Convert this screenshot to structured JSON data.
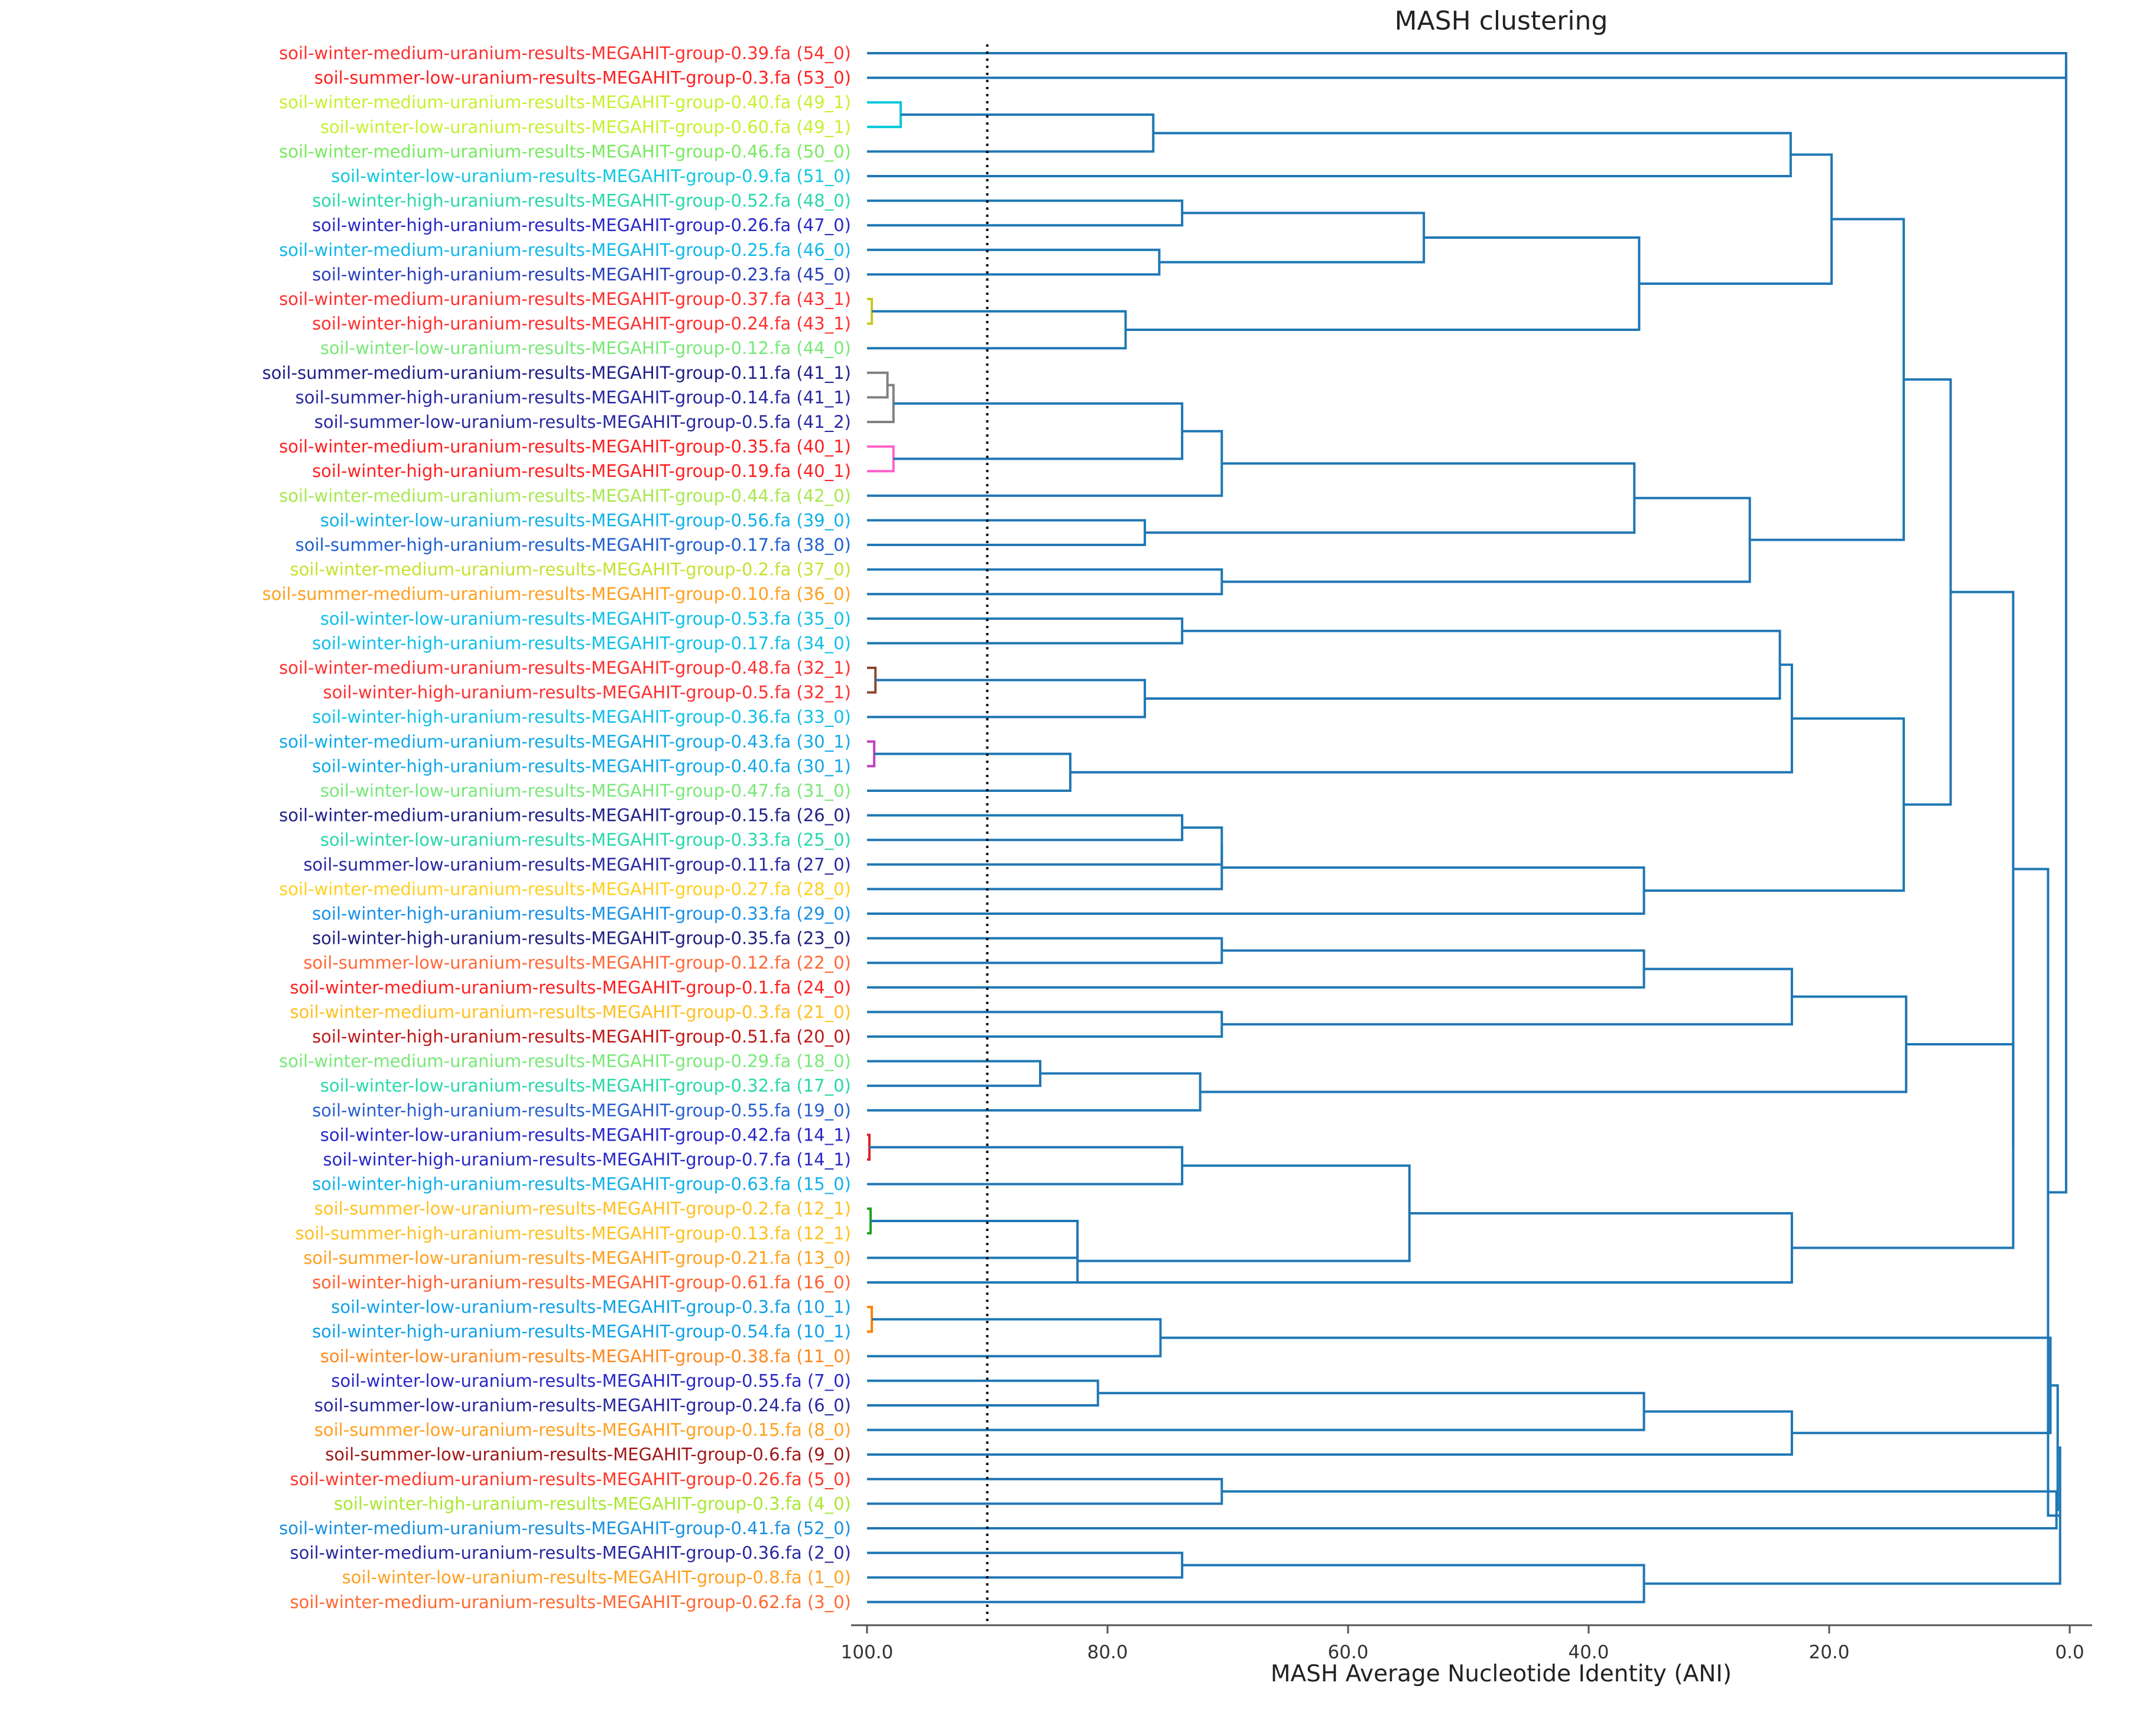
{
  "chart_data": {
    "type": "dendrogram",
    "title": "MASH clustering",
    "xlabel": "MASH Average Nucleotide Identity (ANI)",
    "xlim": [
      100,
      0
    ],
    "xticks": [
      {
        "value": 100,
        "label": "100.0"
      },
      {
        "value": 80,
        "label": "80.0"
      },
      {
        "value": 60,
        "label": "60.0"
      },
      {
        "value": 40,
        "label": "40.0"
      },
      {
        "value": 20,
        "label": "20.0"
      },
      {
        "value": 0,
        "label": "0.0"
      }
    ],
    "threshold_line": 90,
    "line_color": "#1f77b4",
    "leaves": [
      {
        "label": "soil-winter-medium-uranium-results-MEGAHIT-group-0.39.fa (54_0)",
        "color": "#ff3030"
      },
      {
        "label": "soil-summer-low-uranium-results-MEGAHIT-group-0.3.fa (53_0)",
        "color": "#ff2020"
      },
      {
        "label": "soil-winter-medium-uranium-results-MEGAHIT-group-0.40.fa (49_1)",
        "color": "#c8f030"
      },
      {
        "label": "soil-winter-low-uranium-results-MEGAHIT-group-0.60.fa (49_1)",
        "color": "#c8f030"
      },
      {
        "label": "soil-winter-medium-uranium-results-MEGAHIT-group-0.46.fa (50_0)",
        "color": "#78ea60"
      },
      {
        "label": "soil-winter-low-uranium-results-MEGAHIT-group-0.9.fa (51_0)",
        "color": "#10c8e0"
      },
      {
        "label": "soil-winter-high-uranium-results-MEGAHIT-group-0.52.fa (48_0)",
        "color": "#28d8a8"
      },
      {
        "label": "soil-winter-high-uranium-results-MEGAHIT-group-0.26.fa (47_0)",
        "color": "#2828c8"
      },
      {
        "label": "soil-winter-medium-uranium-results-MEGAHIT-group-0.25.fa (46_0)",
        "color": "#10b8e8"
      },
      {
        "label": "soil-winter-high-uranium-results-MEGAHIT-group-0.23.fa (45_0)",
        "color": "#2840b8"
      },
      {
        "label": "soil-winter-medium-uranium-results-MEGAHIT-group-0.37.fa (43_1)",
        "color": "#ff3030"
      },
      {
        "label": "soil-winter-high-uranium-results-MEGAHIT-group-0.24.fa (43_1)",
        "color": "#ff3030"
      },
      {
        "label": "soil-winter-low-uranium-results-MEGAHIT-group-0.12.fa (44_0)",
        "color": "#78e878"
      },
      {
        "label": "soil-summer-medium-uranium-results-MEGAHIT-group-0.11.fa (41_1)",
        "color": "#202088"
      },
      {
        "label": "soil-summer-high-uranium-results-MEGAHIT-group-0.14.fa (41_1)",
        "color": "#2828a0"
      },
      {
        "label": "soil-summer-low-uranium-results-MEGAHIT-group-0.5.fa (41_2)",
        "color": "#2828a0"
      },
      {
        "label": "soil-winter-medium-uranium-results-MEGAHIT-group-0.35.fa (40_1)",
        "color": "#ff2020"
      },
      {
        "label": "soil-winter-high-uranium-results-MEGAHIT-group-0.19.fa (40_1)",
        "color": "#ff2020"
      },
      {
        "label": "soil-winter-medium-uranium-results-MEGAHIT-group-0.44.fa (42_0)",
        "color": "#a8e850"
      },
      {
        "label": "soil-winter-low-uranium-results-MEGAHIT-group-0.56.fa (39_0)",
        "color": "#10b0e8"
      },
      {
        "label": "soil-summer-high-uranium-results-MEGAHIT-group-0.17.fa (38_0)",
        "color": "#2060d0"
      },
      {
        "label": "soil-winter-medium-uranium-results-MEGAHIT-group-0.2.fa (37_0)",
        "color": "#c8e030"
      },
      {
        "label": "soil-summer-medium-uranium-results-MEGAHIT-group-0.10.fa (36_0)",
        "color": "#ffa020"
      },
      {
        "label": "soil-winter-low-uranium-results-MEGAHIT-group-0.53.fa (35_0)",
        "color": "#10c0e8"
      },
      {
        "label": "soil-winter-high-uranium-results-MEGAHIT-group-0.17.fa (34_0)",
        "color": "#10c0e8"
      },
      {
        "label": "soil-winter-medium-uranium-results-MEGAHIT-group-0.48.fa (32_1)",
        "color": "#ff3030"
      },
      {
        "label": "soil-winter-high-uranium-results-MEGAHIT-group-0.5.fa (32_1)",
        "color": "#ff3030"
      },
      {
        "label": "soil-winter-high-uranium-results-MEGAHIT-group-0.36.fa (33_0)",
        "color": "#10c0e8"
      },
      {
        "label": "soil-winter-medium-uranium-results-MEGAHIT-group-0.43.fa (30_1)",
        "color": "#10a8e8"
      },
      {
        "label": "soil-winter-high-uranium-results-MEGAHIT-group-0.40.fa (30_1)",
        "color": "#10a8e8"
      },
      {
        "label": "soil-winter-low-uranium-results-MEGAHIT-group-0.47.fa (31_0)",
        "color": "#78e878"
      },
      {
        "label": "soil-winter-medium-uranium-results-MEGAHIT-group-0.15.fa (26_0)",
        "color": "#202088"
      },
      {
        "label": "soil-winter-low-uranium-results-MEGAHIT-group-0.33.fa (25_0)",
        "color": "#28d8a8"
      },
      {
        "label": "soil-summer-low-uranium-results-MEGAHIT-group-0.11.fa (27_0)",
        "color": "#2828a0"
      },
      {
        "label": "soil-winter-medium-uranium-results-MEGAHIT-group-0.27.fa (28_0)",
        "color": "#ffd020"
      },
      {
        "label": "soil-winter-high-uranium-results-MEGAHIT-group-0.33.fa (29_0)",
        "color": "#1890e8"
      },
      {
        "label": "soil-winter-high-uranium-results-MEGAHIT-group-0.35.fa (23_0)",
        "color": "#202080"
      },
      {
        "label": "soil-summer-low-uranium-results-MEGAHIT-group-0.12.fa (22_0)",
        "color": "#ff6838"
      },
      {
        "label": "soil-winter-medium-uranium-results-MEGAHIT-group-0.1.fa (24_0)",
        "color": "#ff2020"
      },
      {
        "label": "soil-winter-medium-uranium-results-MEGAHIT-group-0.3.fa (21_0)",
        "color": "#ffc020"
      },
      {
        "label": "soil-winter-high-uranium-results-MEGAHIT-group-0.51.fa (20_0)",
        "color": "#c01818"
      },
      {
        "label": "soil-winter-medium-uranium-results-MEGAHIT-group-0.29.fa (18_0)",
        "color": "#78e878"
      },
      {
        "label": "soil-winter-low-uranium-results-MEGAHIT-group-0.32.fa (17_0)",
        "color": "#28d8a8"
      },
      {
        "label": "soil-winter-high-uranium-results-MEGAHIT-group-0.55.fa (19_0)",
        "color": "#2860d0"
      },
      {
        "label": "soil-winter-low-uranium-results-MEGAHIT-group-0.42.fa (14_1)",
        "color": "#2828c8"
      },
      {
        "label": "soil-winter-high-uranium-results-MEGAHIT-group-0.7.fa (14_1)",
        "color": "#2828c8"
      },
      {
        "label": "soil-winter-high-uranium-results-MEGAHIT-group-0.63.fa (15_0)",
        "color": "#10b0e8"
      },
      {
        "label": "soil-summer-low-uranium-results-MEGAHIT-group-0.2.fa (12_1)",
        "color": "#ffc020"
      },
      {
        "label": "soil-summer-high-uranium-results-MEGAHIT-group-0.13.fa (12_1)",
        "color": "#ffc020"
      },
      {
        "label": "soil-summer-low-uranium-results-MEGAHIT-group-0.21.fa (13_0)",
        "color": "#ffa020"
      },
      {
        "label": "soil-winter-high-uranium-results-MEGAHIT-group-0.61.fa (16_0)",
        "color": "#ff6030"
      },
      {
        "label": "soil-winter-low-uranium-results-MEGAHIT-group-0.3.fa (10_1)",
        "color": "#10a0e8"
      },
      {
        "label": "soil-winter-high-uranium-results-MEGAHIT-group-0.54.fa (10_1)",
        "color": "#10a0e8"
      },
      {
        "label": "soil-winter-low-uranium-results-MEGAHIT-group-0.38.fa (11_0)",
        "color": "#ff8820"
      },
      {
        "label": "soil-winter-low-uranium-results-MEGAHIT-group-0.55.fa (7_0)",
        "color": "#2828c8"
      },
      {
        "label": "soil-summer-low-uranium-results-MEGAHIT-group-0.24.fa (6_0)",
        "color": "#2828a0"
      },
      {
        "label": "soil-summer-low-uranium-results-MEGAHIT-group-0.15.fa (8_0)",
        "color": "#ffa020"
      },
      {
        "label": "soil-summer-low-uranium-results-MEGAHIT-group-0.6.fa (9_0)",
        "color": "#a01818"
      },
      {
        "label": "soil-winter-medium-uranium-results-MEGAHIT-group-0.26.fa (5_0)",
        "color": "#ff3828"
      },
      {
        "label": "soil-winter-high-uranium-results-MEGAHIT-group-0.3.fa (4_0)",
        "color": "#a8e830"
      },
      {
        "label": "soil-winter-medium-uranium-results-MEGAHIT-group-0.41.fa (52_0)",
        "color": "#1890e0"
      },
      {
        "label": "soil-winter-medium-uranium-results-MEGAHIT-group-0.36.fa (2_0)",
        "color": "#2828a0"
      },
      {
        "label": "soil-winter-low-uranium-results-MEGAHIT-group-0.8.fa (1_0)",
        "color": "#ffa020"
      },
      {
        "label": "soil-winter-medium-uranium-results-MEGAHIT-group-0.62.fa (3_0)",
        "color": "#ff6830"
      }
    ],
    "merges": [
      {
        "id": "c00",
        "a": 0,
        "b": 1,
        "height": 0.3
      },
      {
        "id": "c01",
        "a": 2,
        "b": 3,
        "height": 97.2,
        "color": "#00c8d8"
      },
      {
        "id": "c02",
        "a": "c01",
        "b": 4,
        "height": 76.2
      },
      {
        "id": "c03",
        "a": "c02",
        "b": 5,
        "height": 23.2
      },
      {
        "id": "c04",
        "a": 6,
        "b": 7,
        "height": 73.8
      },
      {
        "id": "c05",
        "a": 8,
        "b": 9,
        "height": 75.7
      },
      {
        "id": "c06",
        "a": "c04",
        "b": "c05",
        "height": 53.7
      },
      {
        "id": "c07",
        "a": 10,
        "b": 11,
        "height": 99.6,
        "color": "#c8c820"
      },
      {
        "id": "c08",
        "a": "c07",
        "b": 12,
        "height": 78.5
      },
      {
        "id": "c09",
        "a": "c06",
        "b": "c08",
        "height": 35.8
      },
      {
        "id": "c10",
        "a": "c03",
        "b": "c09",
        "height": 19.8
      },
      {
        "id": "c11",
        "a": 13,
        "b": 14,
        "height": 98.3,
        "color": "#808080"
      },
      {
        "id": "c12",
        "a": "c11",
        "b": 15,
        "height": 97.8,
        "color": "#808080"
      },
      {
        "id": "c13",
        "a": 16,
        "b": 17,
        "height": 97.8,
        "color": "#ff60c8"
      },
      {
        "id": "c14",
        "a": "c12",
        "b": "c13",
        "height": 73.8
      },
      {
        "id": "c15",
        "a": "c14",
        "b": 18,
        "height": 70.5
      },
      {
        "id": "c16",
        "a": 19,
        "b": 20,
        "height": 76.9
      },
      {
        "id": "c17",
        "a": "c15",
        "b": "c16",
        "height": 36.2
      },
      {
        "id": "c18",
        "a": 21,
        "b": 22,
        "height": 70.5
      },
      {
        "id": "c19",
        "a": "c17",
        "b": "c18",
        "height": 26.6
      },
      {
        "id": "c20",
        "a": "c10",
        "b": "c19",
        "height": 13.8
      },
      {
        "id": "c21",
        "a": 23,
        "b": 24,
        "height": 73.8
      },
      {
        "id": "c22",
        "a": 25,
        "b": 26,
        "height": 99.3,
        "color": "#8c4830"
      },
      {
        "id": "c23",
        "a": "c22",
        "b": 27,
        "height": 76.9
      },
      {
        "id": "c24",
        "a": "c21",
        "b": "c23",
        "height": 24.1
      },
      {
        "id": "c25",
        "a": 28,
        "b": 29,
        "height": 99.4,
        "color": "#c040c0"
      },
      {
        "id": "c26",
        "a": "c25",
        "b": 30,
        "height": 83.1
      },
      {
        "id": "c27",
        "a": "c24",
        "b": "c26",
        "height": 23.1
      },
      {
        "id": "c28",
        "a": 31,
        "b": 32,
        "height": 73.8
      },
      {
        "id": "c29",
        "a": "c28",
        "b": 33,
        "height": 70.5
      },
      {
        "id": "c30",
        "a": "c29",
        "b": 34,
        "height": 70.5
      },
      {
        "id": "c31",
        "a": "c30",
        "b": 35,
        "height": 35.4
      },
      {
        "id": "c32",
        "a": "c27",
        "b": "c31",
        "height": 13.8
      },
      {
        "id": "c33",
        "a": "c20",
        "b": "c32",
        "height": 9.9
      },
      {
        "id": "c34",
        "a": 36,
        "b": 37,
        "height": 70.5
      },
      {
        "id": "c35",
        "a": "c34",
        "b": 38,
        "height": 35.4
      },
      {
        "id": "c36",
        "a": 39,
        "b": 40,
        "height": 70.5
      },
      {
        "id": "c37",
        "a": "c35",
        "b": "c36",
        "height": 23.1
      },
      {
        "id": "c38",
        "a": 41,
        "b": 42,
        "height": 85.6
      },
      {
        "id": "c39",
        "a": "c38",
        "b": 43,
        "height": 72.3
      },
      {
        "id": "c40",
        "a": "c37",
        "b": "c39",
        "height": 13.6
      },
      {
        "id": "c41",
        "a": 44,
        "b": 45,
        "height": 99.8,
        "color": "#e02020"
      },
      {
        "id": "c42",
        "a": "c41",
        "b": 46,
        "height": 73.8
      },
      {
        "id": "c43",
        "a": 47,
        "b": 48,
        "height": 99.7,
        "color": "#20a020"
      },
      {
        "id": "c44",
        "a": "c43",
        "b": 49,
        "height": 82.5
      },
      {
        "id": "c45",
        "a": "c44",
        "b": 50,
        "height": 82.5
      },
      {
        "id": "c46",
        "a": "c42",
        "b": "c45",
        "height": 54.9
      },
      {
        "id": "c47",
        "a": "c46",
        "b": 50,
        "height": 23.1
      },
      {
        "id": "c48",
        "a": 51,
        "b": 52,
        "height": 99.6,
        "color": "#ff8000"
      },
      {
        "id": "c49",
        "a": "c48",
        "b": 53,
        "height": 75.6
      },
      {
        "id": "c50",
        "a": 54,
        "b": 55,
        "height": 80.8
      },
      {
        "id": "c51",
        "a": "c50",
        "b": 56,
        "height": 35.4
      },
      {
        "id": "c52",
        "a": "c51",
        "b": 57,
        "height": 23.1
      },
      {
        "id": "c53",
        "a": 58,
        "b": 59,
        "height": 70.5
      },
      {
        "id": "c54",
        "a": 61,
        "b": 62,
        "height": 73.8
      },
      {
        "id": "c55",
        "a": "c54",
        "b": 63,
        "height": 35.4
      },
      {
        "id": "c56",
        "a": "c40",
        "b": "c47",
        "height": 4.7
      },
      {
        "id": "c57",
        "a": "c33",
        "b": "c56",
        "height": 4.7
      },
      {
        "id": "c58",
        "a": "c49",
        "b": "c52",
        "height": 1.6
      },
      {
        "id": "c59",
        "a": "c53",
        "b": 60,
        "height": 1.1
      },
      {
        "id": "c60",
        "a": "c58",
        "b": "c59",
        "height": 1.0
      },
      {
        "id": "c61",
        "a": "c60",
        "b": "c55",
        "height": 0.8
      },
      {
        "id": "c62",
        "a": "c57",
        "b": "c61",
        "height": 1.8
      },
      {
        "id": "c63",
        "a": "c00",
        "b": "c62",
        "height": 0.3
      }
    ]
  }
}
